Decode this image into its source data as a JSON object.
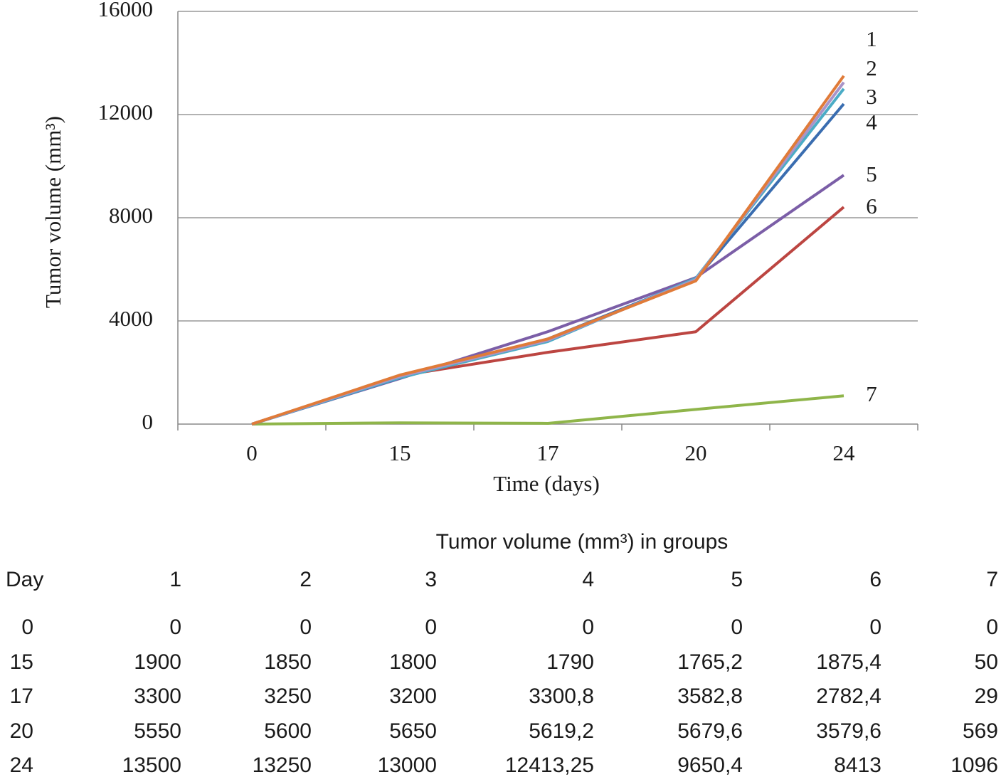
{
  "chart_data": {
    "type": "line",
    "y_label": "Tumor volume (mm³)",
    "x_label": "Time (days)",
    "categories": [
      "0",
      "15",
      "17",
      "20",
      "24"
    ],
    "ylim": [
      0,
      16000
    ],
    "yticks": [
      0,
      4000,
      8000,
      12000,
      16000
    ],
    "grid": true,
    "series": [
      {
        "name": "1",
        "color": "#e07b39",
        "values": [
          0,
          1900,
          3300,
          5550,
          13500
        ],
        "value_labels": [
          "0",
          "1900",
          "3300",
          "5550",
          "13500"
        ]
      },
      {
        "name": "2",
        "color": "#a994c8",
        "values": [
          0,
          1850,
          3250,
          5600,
          13250
        ],
        "value_labels": [
          "0",
          "1850",
          "3250",
          "5600",
          "13250"
        ]
      },
      {
        "name": "3",
        "color": "#4bacc6",
        "values": [
          0,
          1800,
          3200,
          5650,
          13000
        ],
        "value_labels": [
          "0",
          "1800",
          "3200",
          "5650",
          "13000"
        ]
      },
      {
        "name": "4",
        "color": "#3a6db0",
        "values": [
          0,
          1790,
          3300.8,
          5619.2,
          12413.25
        ],
        "value_labels": [
          "0",
          "1790",
          "3300,8",
          "5619,2",
          "12413,25"
        ]
      },
      {
        "name": "5",
        "color": "#7b5ea7",
        "values": [
          0,
          1765.2,
          3582.8,
          5679.6,
          9650.4
        ],
        "value_labels": [
          "0",
          "1765,2",
          "3582,8",
          "5679,6",
          "9650,4"
        ]
      },
      {
        "name": "6",
        "color": "#bc4541",
        "values": [
          0,
          1875.4,
          2782.4,
          3579.6,
          8413
        ],
        "value_labels": [
          "0",
          "1875,4",
          "2782,4",
          "3579,6",
          "8413"
        ]
      },
      {
        "name": "7",
        "color": "#8fb54a",
        "values": [
          0,
          50,
          29,
          569,
          1096
        ],
        "value_labels": [
          "0",
          "50",
          "29",
          "569",
          "1096"
        ]
      }
    ]
  },
  "table": {
    "title": "Tumor volume (mm³) in groups",
    "day_header": "Day"
  }
}
